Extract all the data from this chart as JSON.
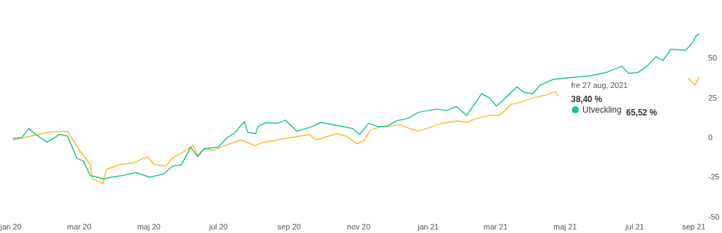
{
  "chart_data": {
    "type": "line",
    "xlim": [
      "2019-12-24",
      "2021-09-01"
    ],
    "xticks": [
      {
        "value": "2020-01-01",
        "label": "jan 20"
      },
      {
        "value": "2020-03-01",
        "label": "mar 20"
      },
      {
        "value": "2020-05-01",
        "label": "maj 20"
      },
      {
        "value": "2020-07-01",
        "label": "jul 20"
      },
      {
        "value": "2020-09-01",
        "label": "sep 20"
      },
      {
        "value": "2020-11-01",
        "label": "nov 20"
      },
      {
        "value": "2021-01-01",
        "label": "jan 21"
      },
      {
        "value": "2021-03-01",
        "label": "mar 21"
      },
      {
        "value": "2021-05-01",
        "label": "maj 21"
      },
      {
        "value": "2021-07-01",
        "label": "jul 21"
      },
      {
        "value": "2021-09-01",
        "label": "sep 21"
      }
    ],
    "ylim": [
      -50,
      85
    ],
    "yticks": [
      -50,
      -25,
      0,
      25,
      50
    ],
    "grid": false,
    "legend": "right",
    "annotations": [
      "fre 27 aug, 2021",
      "38,40 %",
      "65,52 %"
    ],
    "series": [
      {
        "color": "#fdb92a",
        "x": [
          "2020-01-03",
          "2020-02-04",
          "2020-02-20",
          "2020-03-01",
          "2020-03-11",
          "2020-03-13",
          "2020-03-22",
          "2020-03-25",
          "2020-04-06",
          "2020-04-18",
          "2020-04-30",
          "2020-05-06",
          "2020-05-16",
          "2020-05-22",
          "2020-06-03",
          "2020-06-09",
          "2020-06-13",
          "2020-06-19",
          "2020-06-27",
          "2020-07-07",
          "2020-07-21",
          "2020-08-02",
          "2020-08-10",
          "2020-08-30",
          "2020-09-19",
          "2020-09-25",
          "2020-10-13",
          "2020-10-21",
          "2020-10-31",
          "2020-11-06",
          "2020-11-12",
          "2020-11-22",
          "2020-12-08",
          "2020-12-16",
          "2020-12-24",
          "2020-12-28",
          "2021-01-13",
          "2021-01-27",
          "2021-02-04",
          "2021-02-12",
          "2021-02-24",
          "2021-03-04",
          "2021-03-08",
          "2021-03-15",
          "2021-03-22",
          "2021-04-03",
          "2021-04-15",
          "2021-04-23",
          "2021-04-25",
          "2021-06-01",
          "2021-08-17",
          "2021-08-23",
          "2021-08-27"
        ],
        "values": [
          -1.5,
          3.5,
          4,
          -7.6,
          -17,
          -26,
          -29,
          -20,
          -17,
          -16,
          -12,
          -17,
          -18,
          -13,
          -8,
          -5,
          -11,
          -7,
          -8,
          -5,
          -1.5,
          -5,
          -3,
          -0.5,
          2,
          -1.5,
          2.5,
          1,
          -4,
          -1.5,
          5,
          7,
          8,
          5.7,
          4,
          5,
          9,
          10.5,
          9.5,
          12,
          14,
          14,
          16,
          21,
          22,
          25,
          27,
          29,
          26,
          null,
          37.6,
          33,
          38.4
        ]
      },
      {
        "name": "Utveckling",
        "color": "#1dc588",
        "x": [
          "2020-01-03",
          "2020-01-11",
          "2020-01-17",
          "2020-01-23",
          "2020-02-02",
          "2020-02-13",
          "2020-02-20",
          "2020-02-28",
          "2020-03-05",
          "2020-03-11",
          "2020-03-23",
          "2020-03-29",
          "2020-04-08",
          "2020-04-20",
          "2020-05-02",
          "2020-05-14",
          "2020-05-22",
          "2020-05-30",
          "2020-06-07",
          "2020-06-13",
          "2020-06-19",
          "2020-07-01",
          "2020-07-09",
          "2020-07-15",
          "2020-07-24",
          "2020-07-27",
          "2020-08-03",
          "2020-08-05",
          "2020-08-12",
          "2020-08-22",
          "2020-08-29",
          "2020-09-08",
          "2020-09-22",
          "2020-09-29",
          "2020-10-11",
          "2020-10-27",
          "2020-11-02",
          "2020-11-10",
          "2020-11-18",
          "2020-11-26",
          "2020-12-04",
          "2020-12-14",
          "2020-12-24",
          "2021-01-01",
          "2021-01-09",
          "2021-01-17",
          "2021-01-26",
          "2021-02-04",
          "2021-02-17",
          "2021-02-24",
          "2021-03-02",
          "2021-03-07",
          "2021-03-20",
          "2021-03-26",
          "2021-04-03",
          "2021-04-09",
          "2021-04-21",
          "2021-05-09",
          "2021-05-24",
          "2021-06-06",
          "2021-06-20",
          "2021-06-26",
          "2021-07-04",
          "2021-07-12",
          "2021-07-20",
          "2021-07-26",
          "2021-08-02",
          "2021-08-15",
          "2021-08-20",
          "2021-08-24",
          "2021-08-27"
        ],
        "values": [
          -0.5,
          0,
          5.7,
          2,
          -3,
          2,
          1,
          -13,
          -15,
          -24,
          -26,
          -25,
          -24,
          -22,
          -25,
          -23,
          -18,
          -17,
          -6,
          -12,
          -7,
          -6,
          0,
          2.5,
          10,
          3.3,
          2.5,
          7,
          9.5,
          9,
          11,
          4,
          7,
          9.5,
          8,
          5.7,
          2,
          9,
          7,
          7,
          10.5,
          12,
          16,
          17,
          18,
          17,
          19.5,
          14,
          27.6,
          25,
          20,
          23,
          32,
          28.6,
          27.6,
          33,
          36.7,
          38,
          39,
          41,
          45,
          40.5,
          41,
          45,
          51,
          48.6,
          55.7,
          55,
          59,
          64,
          65.52
        ]
      }
    ]
  }
}
